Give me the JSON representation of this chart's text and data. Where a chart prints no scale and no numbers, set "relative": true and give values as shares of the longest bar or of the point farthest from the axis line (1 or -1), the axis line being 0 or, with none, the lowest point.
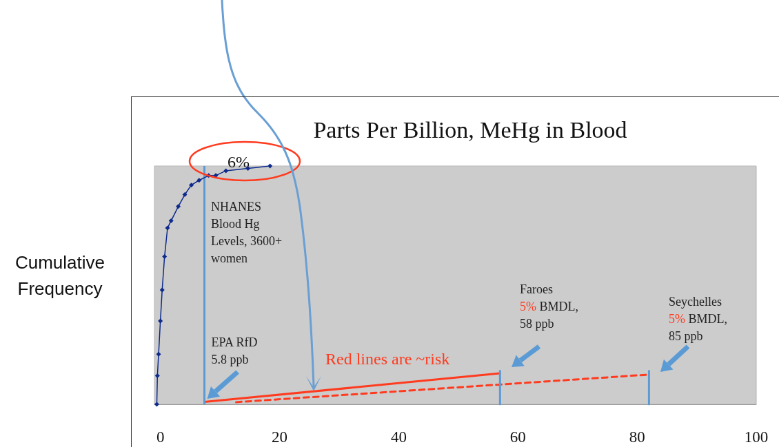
{
  "chart_data": {
    "type": "line",
    "title": "Parts Per Billion, MeHg in Blood",
    "ylabel": "Cumulative Frequency",
    "relative": true,
    "xlim": [
      -1,
      100
    ],
    "xticks": [
      0,
      20,
      40,
      60,
      80,
      100
    ],
    "grid": false,
    "series": [
      {
        "color": "#0d2a8c",
        "marker": "diamond",
        "line_style": "solid",
        "x": [
          -0.6,
          -0.5,
          -0.3,
          0,
          0.3,
          0.7,
          1.2,
          1.8,
          3.0,
          4.1,
          5.2,
          6.5,
          8.1,
          9.3,
          11,
          14.7,
          18.4
        ],
        "values": [
          0,
          0.12,
          0.21,
          0.35,
          0.48,
          0.62,
          0.74,
          0.77,
          0.83,
          0.88,
          0.92,
          0.94,
          0.96,
          0.96,
          0.98,
          0.99,
          1.0
        ]
      },
      {
        "color": "#ff3b1f",
        "marker": "none",
        "line_style": "solid",
        "x": [
          7.4,
          57
        ],
        "values": [
          0.01,
          0.13
        ]
      },
      {
        "color": "#ff3b1f",
        "marker": "none",
        "line_style": "dashed",
        "x": [
          12.7,
          81.6
        ],
        "values": [
          0.009,
          0.124
        ]
      },
      {
        "color": "#5b9bd5",
        "marker": "none",
        "line_style": "solid",
        "x": [
          57,
          57
        ],
        "values": [
          0,
          0.14
        ]
      },
      {
        "color": "#5b9bd5",
        "marker": "none",
        "line_style": "solid",
        "x": [
          82,
          82
        ],
        "values": [
          0,
          0.14
        ]
      }
    ],
    "ref_lines": [
      {
        "axis": "x",
        "value": 7.4,
        "label": "EPA RfD\n5.8 ppb",
        "color": "#5b9bd5"
      }
    ],
    "annotations": [
      "6%",
      "NHANES\nBlood Hg\nLevels, 3600+\nwomen",
      "Red lines are ~risk",
      "Faroes\n5% BMDL,\n58 ppb",
      "Seychelles\n5% BMDL,\n85 ppb"
    ]
  }
}
